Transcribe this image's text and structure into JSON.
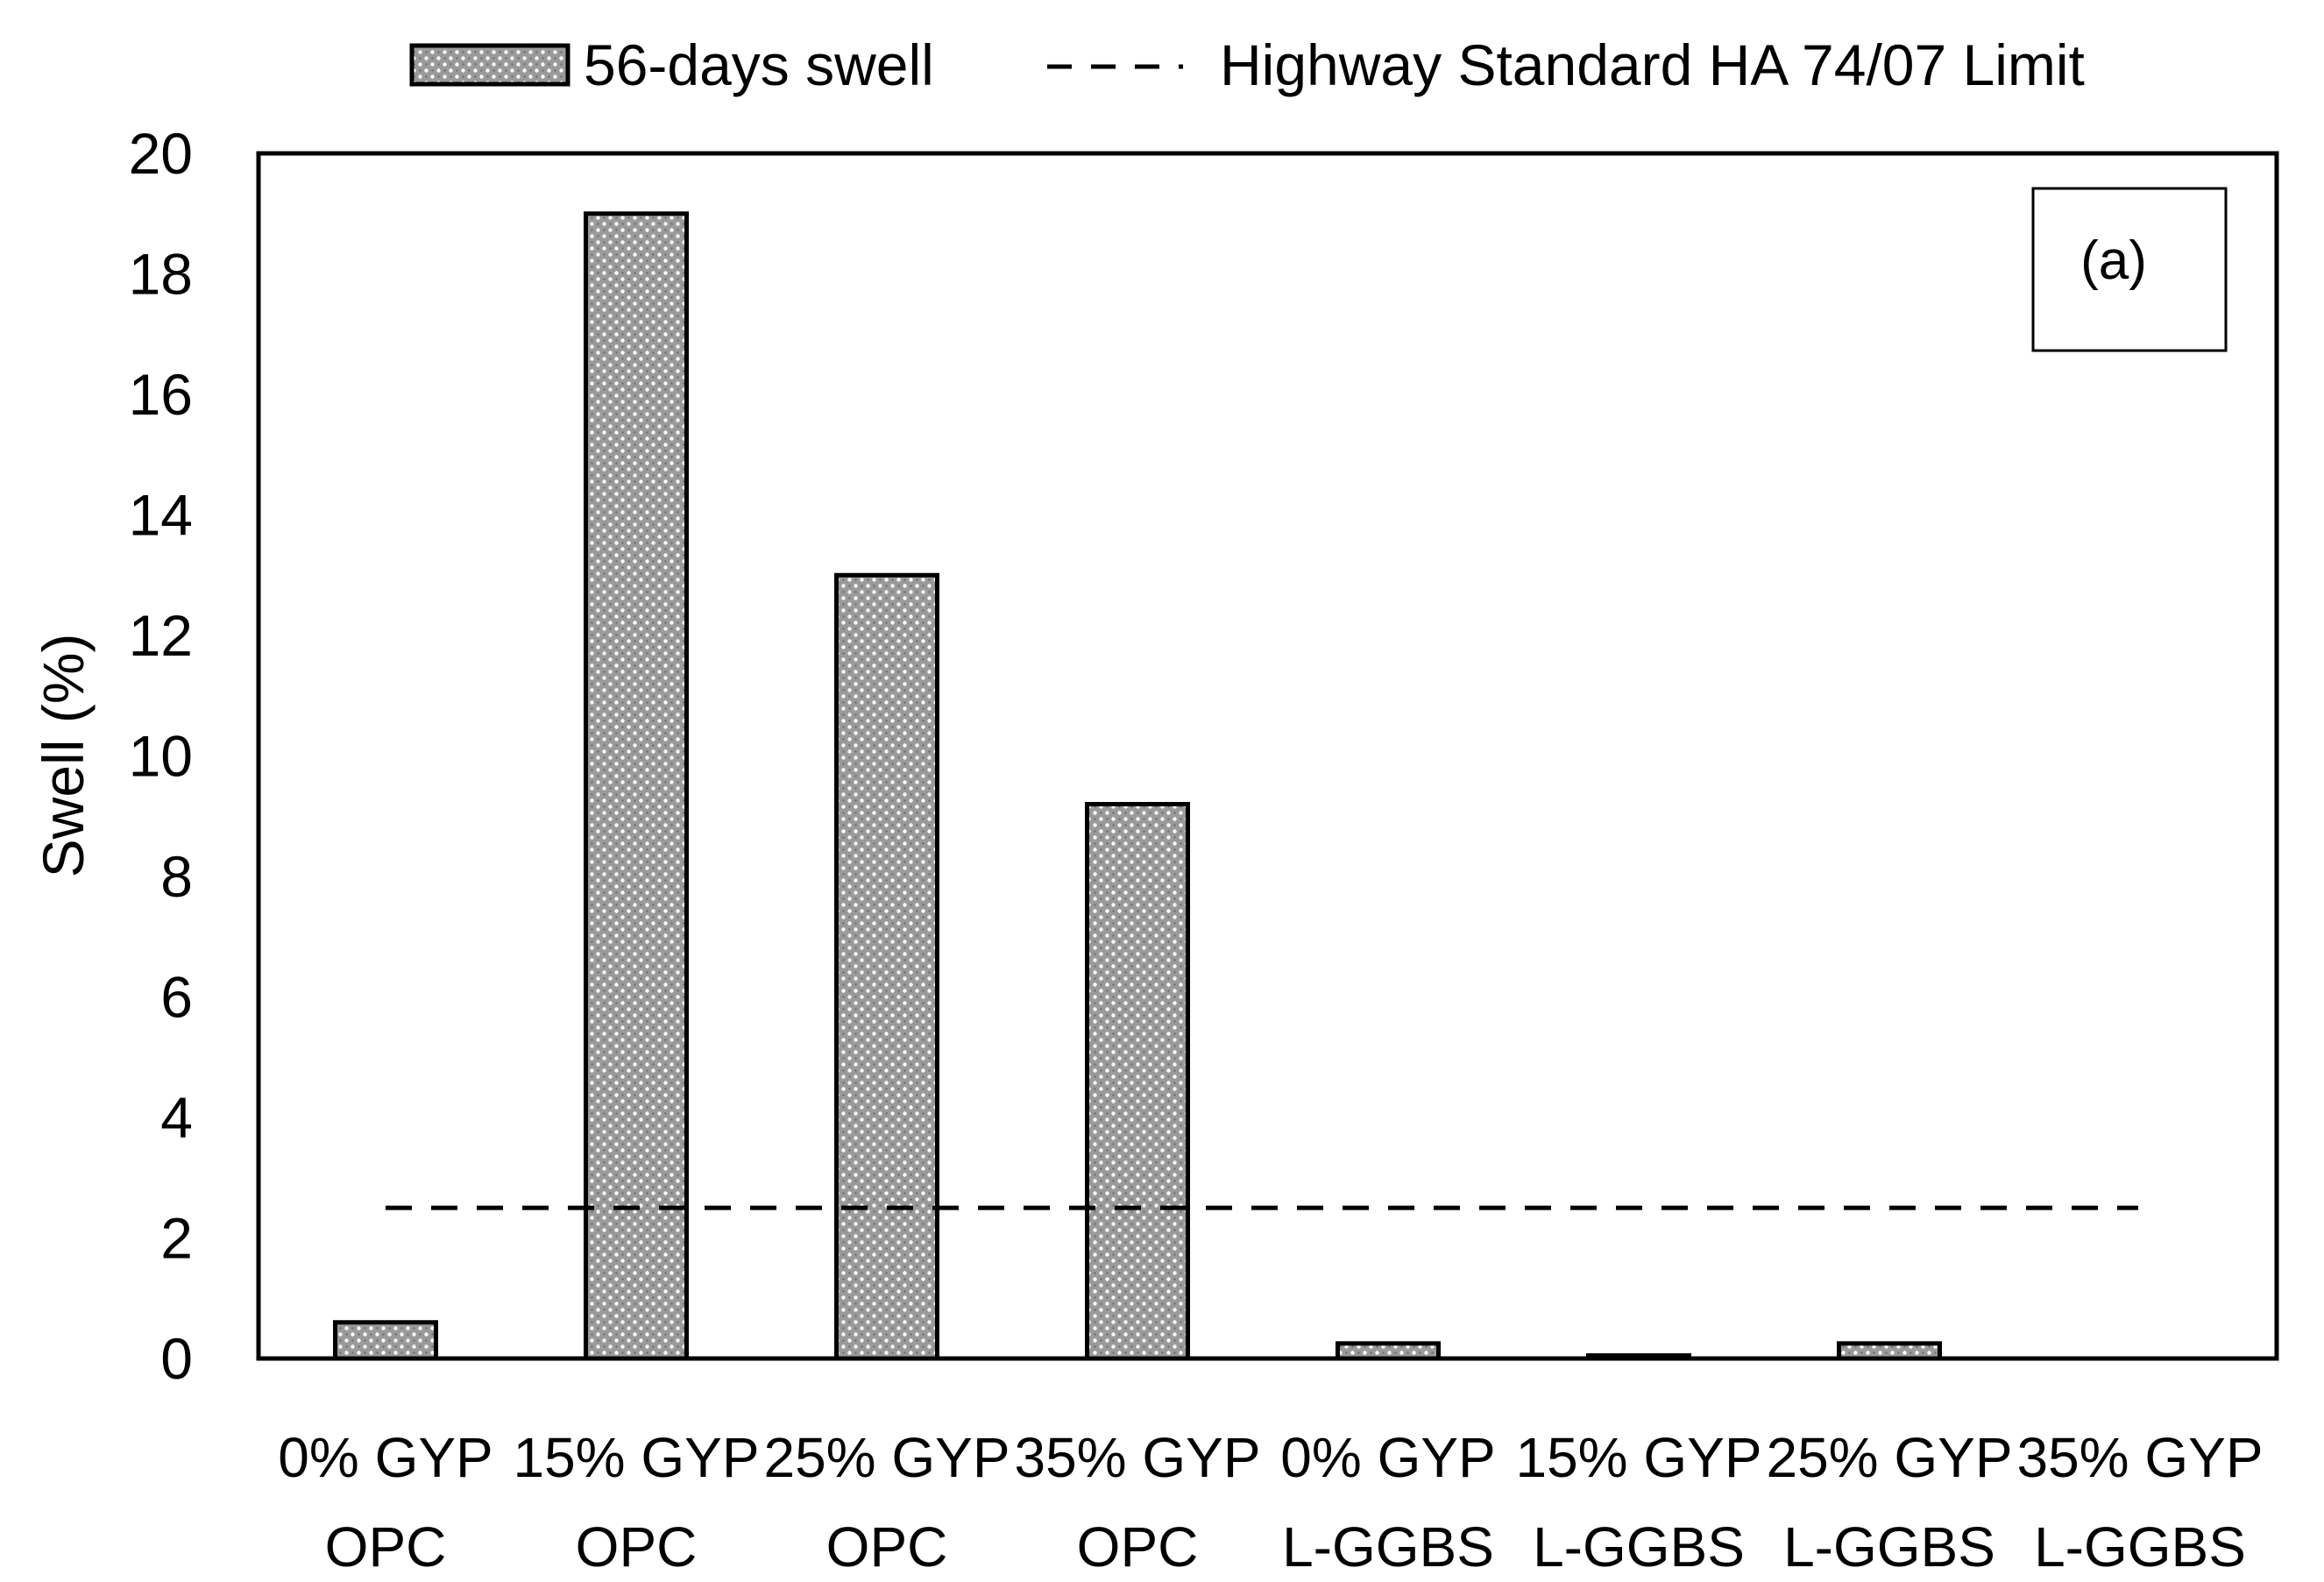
{
  "chart_data": {
    "type": "bar",
    "categories": [
      [
        "0% GYP",
        "OPC"
      ],
      [
        "15% GYP",
        "OPC"
      ],
      [
        "25% GYP",
        "OPC"
      ],
      [
        "35% GYP",
        "OPC"
      ],
      [
        "0% GYP",
        "L-GGBS"
      ],
      [
        "15% GYP",
        "L-GGBS"
      ],
      [
        "25% GYP",
        "L-GGBS"
      ],
      [
        "35% GYP",
        "L-GGBS"
      ]
    ],
    "series": [
      {
        "name": "56-days swell",
        "values": [
          0.6,
          19.0,
          13.0,
          9.2,
          0.25,
          0.05,
          0.25,
          0.0
        ]
      }
    ],
    "reference_line": {
      "name": "Highway Standard HA 74/07 Limit",
      "value": 2.5
    },
    "ylabel": "Swell (%)",
    "xlabel": "",
    "ylim": [
      0,
      20
    ],
    "yticks": [
      "0",
      "2",
      "4",
      "6",
      "8",
      "10",
      "12",
      "14",
      "16",
      "18",
      "20"
    ],
    "annotation": "(a)",
    "legend_position": "top",
    "grid": false,
    "bar_fill": "#a6a6a6"
  }
}
